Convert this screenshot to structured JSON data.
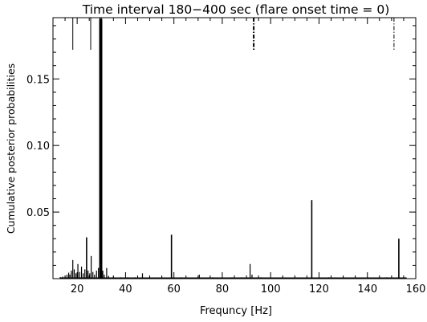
{
  "chart_data": {
    "type": "bar",
    "title": "Time interval 180−400 sec (flare onset time = 0)",
    "xlabel": "Frequncy [Hz]",
    "ylabel": "Cumulative posterior probabilities",
    "xlim": [
      10,
      160
    ],
    "ylim": [
      0,
      0.196
    ],
    "xticks": [
      20,
      40,
      60,
      80,
      100,
      120,
      140,
      160
    ],
    "yticks": [
      0.05,
      0.1,
      0.15
    ],
    "ytick_labels": [
      "0.05",
      "0.10",
      "0.15"
    ],
    "grid": false,
    "spikes": [
      {
        "x": 13.0,
        "y": 0.0012
      },
      {
        "x": 14.0,
        "y": 0.0015
      },
      {
        "x": 15.0,
        "y": 0.002
      },
      {
        "x": 15.8,
        "y": 0.003
      },
      {
        "x": 16.5,
        "y": 0.0045
      },
      {
        "x": 17.0,
        "y": 0.003
      },
      {
        "x": 17.6,
        "y": 0.006
      },
      {
        "x": 18.2,
        "y": 0.014
      },
      {
        "x": 18.8,
        "y": 0.007
      },
      {
        "x": 19.5,
        "y": 0.004
      },
      {
        "x": 20.3,
        "y": 0.011
      },
      {
        "x": 21.0,
        "y": 0.005
      },
      {
        "x": 21.8,
        "y": 0.009
      },
      {
        "x": 22.5,
        "y": 0.004
      },
      {
        "x": 23.2,
        "y": 0.007
      },
      {
        "x": 23.9,
        "y": 0.031
      },
      {
        "x": 24.5,
        "y": 0.006
      },
      {
        "x": 25.2,
        "y": 0.004
      },
      {
        "x": 25.8,
        "y": 0.017
      },
      {
        "x": 26.5,
        "y": 0.005
      },
      {
        "x": 27.2,
        "y": 0.003
      },
      {
        "x": 28.0,
        "y": 0.006
      },
      {
        "x": 28.8,
        "y": 0.008
      },
      {
        "x": 29.5,
        "y": 0.195
      },
      {
        "x": 30.0,
        "y": 0.195
      },
      {
        "x": 30.6,
        "y": 0.006
      },
      {
        "x": 31.2,
        "y": 0.003
      },
      {
        "x": 32.2,
        "y": 0.008
      },
      {
        "x": 33.0,
        "y": 0.002
      },
      {
        "x": 35.0,
        "y": 0.0015
      },
      {
        "x": 38.0,
        "y": 0.001
      },
      {
        "x": 41.0,
        "y": 0.001
      },
      {
        "x": 44.0,
        "y": 0.001
      },
      {
        "x": 47.0,
        "y": 0.004
      },
      {
        "x": 50.0,
        "y": 0.001
      },
      {
        "x": 55.0,
        "y": 0.001
      },
      {
        "x": 59.0,
        "y": 0.033
      },
      {
        "x": 63.0,
        "y": 0.001
      },
      {
        "x": 70.5,
        "y": 0.003
      },
      {
        "x": 76.0,
        "y": 0.001
      },
      {
        "x": 84.0,
        "y": 0.001
      },
      {
        "x": 88.0,
        "y": 0.001
      },
      {
        "x": 91.5,
        "y": 0.011
      },
      {
        "x": 92.3,
        "y": 0.003
      },
      {
        "x": 96.0,
        "y": 0.001
      },
      {
        "x": 105.0,
        "y": 0.001
      },
      {
        "x": 117.0,
        "y": 0.059
      },
      {
        "x": 124.0,
        "y": 0.001
      },
      {
        "x": 130.0,
        "y": 0.001
      },
      {
        "x": 140.0,
        "y": 0.001
      },
      {
        "x": 148.0,
        "y": 0.001
      },
      {
        "x": 153.0,
        "y": 0.03
      },
      {
        "x": 156.0,
        "y": 0.001
      }
    ],
    "markers": [
      {
        "x": 18.2,
        "style": "solid"
      },
      {
        "x": 25.6,
        "style": "solid"
      },
      {
        "x": 29.4,
        "style": "dashed"
      },
      {
        "x": 29.9,
        "style": "dotted"
      },
      {
        "x": 93.0,
        "style": "dashdot"
      },
      {
        "x": 151.0,
        "style": "dashdot"
      }
    ]
  }
}
